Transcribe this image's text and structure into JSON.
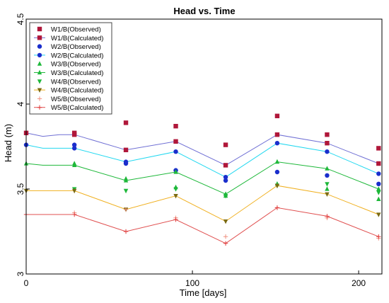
{
  "chart_data": {
    "type": "scatter",
    "title": "Head vs. Time",
    "xlabel": "Time  [days]",
    "ylabel": "Head (m)",
    "xlim": [
      0,
      214
    ],
    "ylim": [
      3.0,
      4.5
    ],
    "xticks": [
      "0",
      "100",
      "200"
    ],
    "xtick_values": [
      0,
      100,
      200
    ],
    "yticks": [
      "3",
      "3.5",
      "4",
      "4.5"
    ],
    "ytick_values": [
      3.0,
      3.5,
      4.0,
      4.5
    ],
    "legend_position": "top-left",
    "series": [
      {
        "name": "W1/B(Observed)",
        "kind": "observed",
        "marker": "square",
        "color": "#b0173a",
        "x": [
          29,
          60,
          90,
          120,
          151,
          181,
          212
        ],
        "y": [
          3.83,
          3.89,
          3.87,
          3.76,
          3.93,
          3.82,
          3.74
        ]
      },
      {
        "name": "W1/B(Calculated)",
        "kind": "calculated",
        "marker": "square",
        "color": "#b0173a",
        "line_color": "#6f6fd4",
        "x": [
          0,
          10,
          20,
          29,
          60,
          90,
          120,
          151,
          181,
          212
        ],
        "y": [
          3.83,
          3.81,
          3.82,
          3.82,
          3.73,
          3.78,
          3.64,
          3.82,
          3.77,
          3.65
        ]
      },
      {
        "name": "W2/B(Observed)",
        "kind": "observed",
        "marker": "circle",
        "color": "#1a2ecc",
        "x": [
          29,
          60,
          90,
          120,
          151,
          181,
          212
        ],
        "y": [
          3.76,
          3.65,
          3.61,
          3.55,
          3.6,
          3.58,
          3.53
        ]
      },
      {
        "name": "W2/B(Calculated)",
        "kind": "calculated",
        "marker": "circle",
        "color": "#1a2ecc",
        "line_color": "#22d8f0",
        "x": [
          0,
          10,
          20,
          29,
          60,
          90,
          120,
          151,
          181,
          212
        ],
        "y": [
          3.76,
          3.74,
          3.74,
          3.74,
          3.66,
          3.72,
          3.57,
          3.77,
          3.72,
          3.59
        ]
      },
      {
        "name": "W3/B(Observed)",
        "kind": "observed",
        "marker": "triangle-up",
        "color": "#1eb83a",
        "x": [
          29,
          60,
          90,
          120,
          151,
          181,
          212
        ],
        "y": [
          3.65,
          3.56,
          3.51,
          3.46,
          3.53,
          3.5,
          3.44
        ]
      },
      {
        "name": "W3/B(Calculated)",
        "kind": "calculated",
        "marker": "triangle-up",
        "color": "#1eb83a",
        "line_color": "#1eb83a",
        "x": [
          0,
          10,
          20,
          29,
          60,
          90,
          120,
          151,
          181,
          212
        ],
        "y": [
          3.65,
          3.64,
          3.64,
          3.64,
          3.55,
          3.6,
          3.47,
          3.66,
          3.62,
          3.5
        ]
      },
      {
        "name": "W4/B(Observed)",
        "kind": "observed",
        "marker": "triangle-down",
        "color": "#1eb83a",
        "x": [
          29,
          60,
          90,
          120,
          151,
          181,
          212
        ],
        "y": [
          3.5,
          3.49,
          3.5,
          3.46,
          3.52,
          3.53,
          3.48
        ]
      },
      {
        "name": "W4/B(Calculated)",
        "kind": "calculated",
        "marker": "triangle-down",
        "color": "#7a6a14",
        "line_color": "#f0b020",
        "x": [
          0,
          10,
          20,
          29,
          60,
          90,
          120,
          151,
          181,
          212
        ],
        "y": [
          3.49,
          3.49,
          3.49,
          3.49,
          3.38,
          3.46,
          3.31,
          3.52,
          3.47,
          3.35
        ]
      },
      {
        "name": "W5/B(Observed)",
        "kind": "observed",
        "marker": "plus",
        "color": "#f09080",
        "x": [
          29,
          60,
          90,
          120,
          151,
          181,
          212
        ],
        "y": [
          3.36,
          3.38,
          3.33,
          3.22,
          3.39,
          3.33,
          3.21
        ]
      },
      {
        "name": "W5/B(Calculated)",
        "kind": "calculated",
        "marker": "plus",
        "color": "#e03838",
        "line_color": "#e05050",
        "x": [
          0,
          10,
          20,
          29,
          60,
          90,
          120,
          151,
          181,
          212
        ],
        "y": [
          3.35,
          3.35,
          3.35,
          3.35,
          3.25,
          3.32,
          3.18,
          3.39,
          3.34,
          3.22
        ]
      }
    ]
  }
}
